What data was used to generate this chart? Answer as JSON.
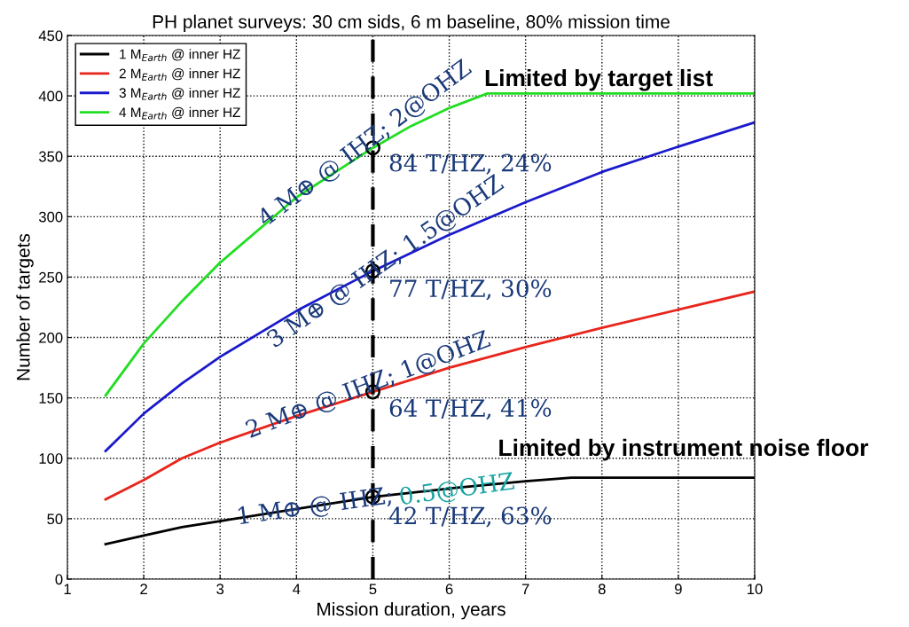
{
  "chart_data": {
    "type": "line",
    "title": "PH planet surveys: 30 cm sids, 6 m baseline, 80% mission time",
    "xlabel": "Mission duration, years",
    "ylabel": "Number of targets",
    "xlim": [
      1,
      10
    ],
    "xticks": [
      1,
      2,
      3,
      4,
      5,
      6,
      7,
      8,
      9,
      10
    ],
    "ylim": [
      0,
      450
    ],
    "yticks": [
      0,
      50,
      100,
      150,
      200,
      250,
      300,
      350,
      400,
      450
    ],
    "grid": true,
    "legend": "top left",
    "line_style": "solid",
    "series": [
      {
        "name": "1 M$_{Earth}$ @ inner HZ",
        "color": "#000000",
        "x": [
          1.5,
          2,
          2.5,
          3,
          4,
          5,
          6,
          7,
          7.6,
          8,
          10
        ],
        "values": [
          29,
          36,
          43,
          48,
          58,
          68,
          75,
          81,
          84,
          84,
          84
        ]
      },
      {
        "name": "2 M$_{Earth}$ @ inner HZ",
        "color": "#e8251c",
        "x": [
          1.5,
          2,
          2.5,
          3,
          4,
          5,
          6,
          7,
          8,
          9,
          10
        ],
        "values": [
          66,
          82,
          100,
          113,
          135,
          155,
          175,
          192,
          208,
          223,
          238
        ]
      },
      {
        "name": "3 M$_{Earth}$ @ inner HZ",
        "color": "#1a1acc",
        "x": [
          1.5,
          2,
          2.5,
          3,
          4,
          5,
          6,
          7,
          8,
          9,
          10
        ],
        "values": [
          106,
          137,
          162,
          184,
          222,
          255,
          285,
          312,
          337,
          358,
          378
        ]
      },
      {
        "name": "4 M$_{Earth}$ @ inner HZ",
        "color": "#22dd22",
        "x": [
          1.5,
          2,
          2.5,
          3,
          4,
          5,
          5.5,
          6,
          6.5,
          10
        ],
        "values": [
          152,
          195,
          230,
          262,
          316,
          357,
          375,
          390,
          402,
          402
        ]
      },
      {
        "type": "scatter",
        "color": "#000000",
        "marker": "circle",
        "x": [
          5,
          5,
          5,
          5
        ],
        "values": [
          68,
          155,
          255,
          357
        ]
      }
    ],
    "ref_lines": [
      {
        "axis": "x",
        "value": 5,
        "color": "#000000",
        "line_style": "dashed"
      }
    ],
    "annotations": [
      {
        "text": "4 M⊕ @ IHZ; 2@OHZ",
        "x": 4.9,
        "y": 360
      },
      "84 T/HZ, 24%",
      {
        "text": "3 M⊕ @ IHZ; 1.5@OHZ",
        "x": 5.17,
        "y": 262
      },
      "77 T/HZ, 30%",
      {
        "text": "2 M⊕ @ IHZ; 1@OHZ",
        "x": 4.94,
        "y": 160
      },
      "64 T/HZ, 41%",
      {
        "text": "1 M⊕ @ IHZ;",
        "x": 4.24,
        "y": 59.5
      },
      {
        "text": "0.5@OHZ",
        "x": 6.1,
        "y": 73.4
      },
      "42 T/HZ, 63%",
      "Limited by target list",
      "Limited by instrument noise floor"
    ]
  }
}
